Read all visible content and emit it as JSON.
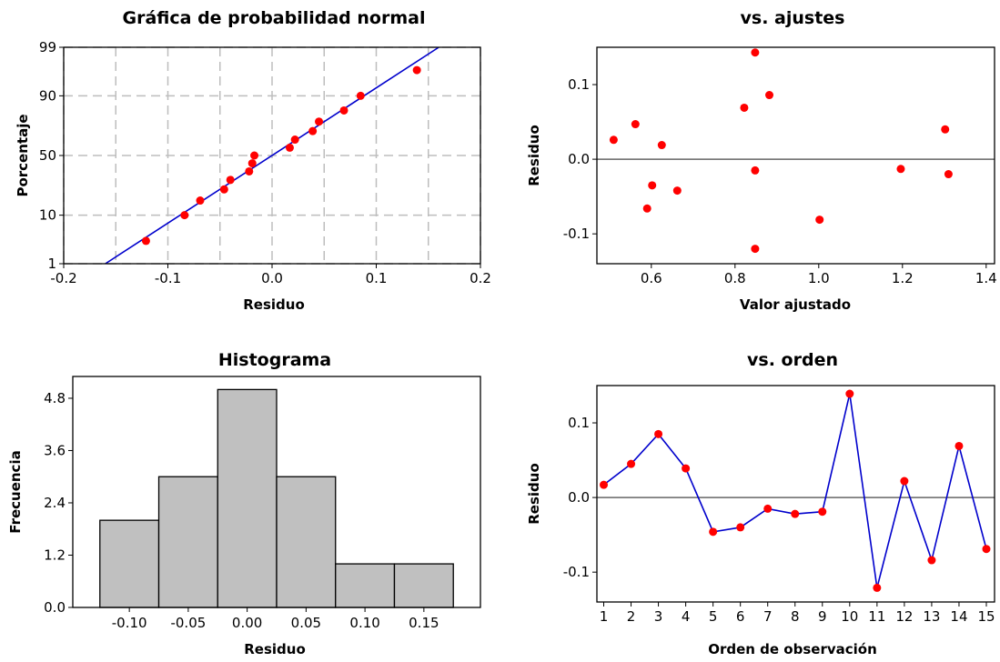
{
  "chart_data": [
    {
      "type": "scatter",
      "title": "Gráfica de probabilidad normal",
      "xlabel": "Residuo",
      "ylabel": "Porcentaje",
      "xlim": [
        -0.2,
        0.2
      ],
      "x_ticks": [
        "-0.2",
        "-0.1",
        "0.0",
        "0.1",
        "0.2"
      ],
      "y_ticks": [
        "1",
        "10",
        "50",
        "90",
        "99"
      ],
      "y_scale": "normal-probability",
      "grid": true,
      "points": [
        {
          "x": -0.121,
          "y": 3.33
        },
        {
          "x": -0.084,
          "y": 10.0
        },
        {
          "x": -0.069,
          "y": 16.67
        },
        {
          "x": -0.046,
          "y": 23.33
        },
        {
          "x": -0.04,
          "y": 30.0
        },
        {
          "x": -0.022,
          "y": 36.67
        },
        {
          "x": -0.019,
          "y": 43.33
        },
        {
          "x": -0.017,
          "y": 50.0
        },
        {
          "x": 0.017,
          "y": 56.67
        },
        {
          "x": 0.022,
          "y": 63.33
        },
        {
          "x": 0.039,
          "y": 70.0
        },
        {
          "x": 0.045,
          "y": 76.67
        },
        {
          "x": 0.069,
          "y": 83.33
        },
        {
          "x": 0.085,
          "y": 90.0
        },
        {
          "x": 0.139,
          "y": 96.67
        }
      ],
      "fit_line": {
        "x": [
          -0.16,
          0.16
        ],
        "y": [
          1.0,
          99.0
        ]
      }
    },
    {
      "type": "scatter",
      "title": "vs. ajustes",
      "xlabel": "Valor ajustado",
      "ylabel": "Residuo",
      "xlim": [
        0.47,
        1.42
      ],
      "ylim": [
        -0.14,
        0.15
      ],
      "x_ticks": [
        "0.6",
        "0.8",
        "1.0",
        "1.2",
        "1.4"
      ],
      "y_ticks": [
        "-0.1",
        "0.0",
        "0.1"
      ],
      "reference_line": 0.0,
      "points": [
        {
          "x": 0.51,
          "y": 0.026
        },
        {
          "x": 0.562,
          "y": 0.047
        },
        {
          "x": 0.59,
          "y": -0.066
        },
        {
          "x": 0.602,
          "y": -0.035
        },
        {
          "x": 0.625,
          "y": 0.019
        },
        {
          "x": 0.662,
          "y": -0.042
        },
        {
          "x": 0.822,
          "y": 0.069
        },
        {
          "x": 0.848,
          "y": 0.143
        },
        {
          "x": 0.848,
          "y": -0.015
        },
        {
          "x": 0.848,
          "y": -0.12
        },
        {
          "x": 0.882,
          "y": 0.086
        },
        {
          "x": 1.002,
          "y": -0.081
        },
        {
          "x": 1.196,
          "y": -0.013
        },
        {
          "x": 1.302,
          "y": 0.04
        },
        {
          "x": 1.31,
          "y": -0.02
        }
      ]
    },
    {
      "type": "bar",
      "title": "Histograma",
      "xlabel": "Residuo",
      "ylabel": "Frecuencia",
      "ylim": [
        0,
        5.3
      ],
      "x_ticks": [
        "-0.10",
        "-0.05",
        "0.00",
        "0.05",
        "0.10",
        "0.15"
      ],
      "y_ticks": [
        "0.0",
        "1.2",
        "2.4",
        "3.6",
        "4.8"
      ],
      "bins": [
        {
          "center": -0.1,
          "value": 2
        },
        {
          "center": -0.05,
          "value": 3
        },
        {
          "center": 0.0,
          "value": 5
        },
        {
          "center": 0.05,
          "value": 3
        },
        {
          "center": 0.1,
          "value": 1
        },
        {
          "center": 0.15,
          "value": 1
        }
      ]
    },
    {
      "type": "line",
      "title": "vs. orden",
      "xlabel": "Orden de observación",
      "ylabel": "Residuo",
      "ylim": [
        -0.14,
        0.15
      ],
      "x_ticks": [
        "1",
        "2",
        "3",
        "4",
        "5",
        "6",
        "7",
        "8",
        "9",
        "10",
        "11",
        "12",
        "13",
        "14",
        "15"
      ],
      "y_ticks": [
        "-0.1",
        "0.0",
        "0.1"
      ],
      "reference_line": 0.0,
      "x": [
        1,
        2,
        3,
        4,
        5,
        6,
        7,
        8,
        9,
        10,
        11,
        12,
        13,
        14,
        15
      ],
      "y": [
        0.017,
        0.045,
        0.085,
        0.039,
        -0.046,
        -0.04,
        -0.015,
        -0.022,
        -0.019,
        0.139,
        -0.121,
        0.022,
        -0.084,
        0.069,
        -0.069
      ]
    }
  ]
}
